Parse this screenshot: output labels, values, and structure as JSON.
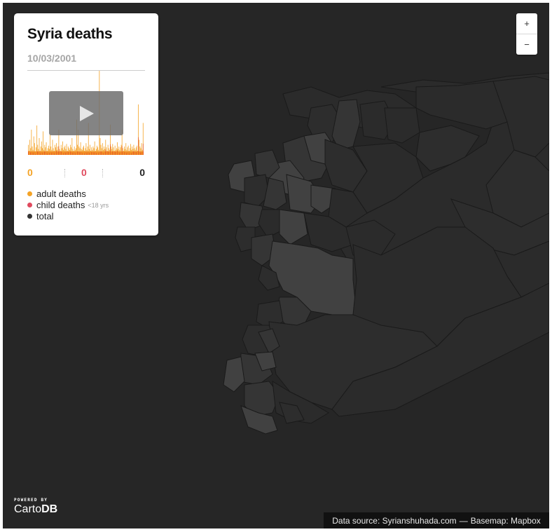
{
  "map": {
    "colors": {
      "background": "#262626",
      "region_dark": "#2b2b2b",
      "region_mid": "#353535",
      "region_light": "#414141",
      "border": "#1a1a1a"
    }
  },
  "panel": {
    "title": "Syria deaths",
    "date": "10/03/2001",
    "play_icon": "play-icon",
    "counts": {
      "adult": "0",
      "child": "0",
      "total": "0"
    },
    "count_colors": {
      "adult": "#f4a326",
      "child": "#e04a5e",
      "total": "#222222"
    },
    "legend": [
      {
        "label": "adult deaths",
        "color": "#f4a326",
        "note": ""
      },
      {
        "label": "child deaths",
        "color": "#e04a5e",
        "note": "<18 yrs"
      },
      {
        "label": "total",
        "color": "#333333",
        "note": ""
      }
    ]
  },
  "timeline": {
    "colors": {
      "adult": "#f4a326",
      "child": "#e85a2a"
    },
    "peak_relative_heights": [
      0.12,
      0.05,
      0.18,
      0.08,
      0.3,
      0.1,
      0.06,
      0.22,
      0.14,
      0.04,
      0.09,
      0.35,
      0.12,
      0.07,
      0.2,
      0.05,
      0.1,
      0.16,
      0.08,
      0.28,
      0.06,
      0.12,
      0.09,
      0.15,
      0.05,
      0.08,
      0.11,
      0.07,
      0.24,
      0.1,
      0.06,
      0.18,
      0.08,
      0.05,
      0.12,
      0.09,
      0.14,
      0.06,
      0.1,
      0.3,
      0.07,
      0.05,
      0.12,
      0.08,
      0.16,
      0.06,
      0.09,
      0.11,
      0.07,
      0.13,
      0.05,
      0.1,
      0.08,
      0.06,
      0.12,
      0.09,
      0.2,
      0.07,
      0.05,
      0.1,
      0.06,
      0.08,
      0.42,
      0.12,
      0.3,
      0.1,
      0.08,
      0.15,
      0.07,
      0.06,
      0.09,
      0.11,
      0.05,
      0.08,
      0.14,
      0.06,
      0.1,
      0.38,
      0.07,
      0.12,
      0.05,
      0.09,
      0.06,
      0.1,
      0.08,
      0.16,
      0.05,
      0.07,
      0.11,
      0.09,
      0.06,
      1.0,
      0.2,
      0.12,
      0.08,
      0.14,
      0.06,
      0.1,
      0.07,
      0.18,
      0.09,
      0.05,
      0.12,
      0.08,
      0.06,
      0.36,
      0.1,
      0.07,
      0.13,
      0.09,
      0.05,
      0.11,
      0.06,
      0.08,
      0.15,
      0.07,
      0.1,
      0.06,
      0.09,
      0.12,
      0.3,
      0.08,
      0.05,
      0.1,
      0.07,
      0.14,
      0.06,
      0.09,
      0.11,
      0.05,
      0.08,
      0.13,
      0.06,
      0.1,
      0.07,
      0.12,
      0.08,
      0.06,
      0.09,
      0.11,
      0.05,
      0.6,
      0.18,
      0.1,
      0.08,
      0.14,
      0.06,
      0.38
    ]
  },
  "zoom": {
    "in_label": "+",
    "out_label": "−"
  },
  "attribution": {
    "source": "Data source: Syrianshuhada.com",
    "separator": "—",
    "basemap": "Basemap: Mapbox"
  },
  "branding": {
    "powered_by": "POWERED BY",
    "name_regular": "Carto",
    "name_bold": "DB"
  }
}
